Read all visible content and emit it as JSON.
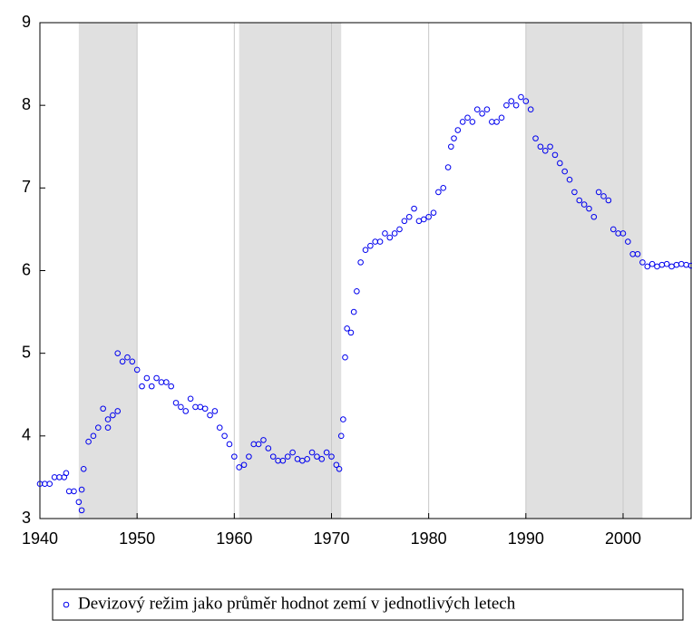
{
  "chart_data": {
    "type": "scatter",
    "xlim": [
      1940,
      2007
    ],
    "ylim": [
      3,
      9
    ],
    "xticks": [
      1940,
      1950,
      1960,
      1970,
      1980,
      1990,
      2000
    ],
    "yticks": [
      3,
      4,
      5,
      6,
      7,
      8,
      9
    ],
    "grid": true,
    "shaded_regions": [
      [
        1944,
        1950
      ],
      [
        1960.5,
        1971
      ],
      [
        1990,
        2002
      ]
    ],
    "legend": "bottom",
    "series": [
      {
        "name": "Devizový režim jako průměr hodnot zemí v jednotlivých letech",
        "color": "#0000ee",
        "x": [
          1940,
          1940.5,
          1941,
          1941.5,
          1942,
          1942.5,
          1942.7,
          1943,
          1943.5,
          1944,
          1944.3,
          1944.3,
          1944.5,
          1945,
          1945.5,
          1946,
          1946.5,
          1947,
          1947,
          1947.5,
          1948,
          1948,
          1948.5,
          1949,
          1949.5,
          1950,
          1950.5,
          1951,
          1951.5,
          1952,
          1952.5,
          1953,
          1953.5,
          1954,
          1954.5,
          1955,
          1955.5,
          1956,
          1956.5,
          1957,
          1957.5,
          1958,
          1958.5,
          1959,
          1959.5,
          1960,
          1960.5,
          1961,
          1961.5,
          1962,
          1962.5,
          1963,
          1963.5,
          1964,
          1964.5,
          1965,
          1965.5,
          1966,
          1966.5,
          1967,
          1967.5,
          1968,
          1968.5,
          1969,
          1969.5,
          1970,
          1970.5,
          1970.8,
          1971,
          1971.2,
          1971.4,
          1971.6,
          1972,
          1972.3,
          1972.6,
          1973,
          1973.5,
          1974,
          1974.5,
          1975,
          1975.5,
          1976,
          1976.5,
          1977,
          1977.5,
          1978,
          1978.5,
          1979,
          1979.5,
          1980,
          1980.5,
          1981,
          1981.5,
          1982,
          1982.3,
          1982.6,
          1983,
          1983.5,
          1984,
          1984.5,
          1985,
          1985.5,
          1986,
          1986.5,
          1987,
          1987.5,
          1988,
          1988.5,
          1989,
          1989.5,
          1990,
          1990.5,
          1991,
          1991.5,
          1992,
          1992.5,
          1993,
          1993.5,
          1994,
          1994.5,
          1995,
          1995.5,
          1996,
          1996.5,
          1997,
          1997.5,
          1998,
          1998.5,
          1999,
          1999.5,
          2000,
          2000.5,
          2001,
          2001.5,
          2002,
          2002.5,
          2003,
          2003.5,
          2004,
          2004.5,
          2005,
          2005.5,
          2006,
          2006.5,
          2007
        ],
        "values": [
          3.42,
          3.42,
          3.42,
          3.5,
          3.5,
          3.5,
          3.55,
          3.33,
          3.33,
          3.2,
          3.1,
          3.35,
          3.6,
          3.93,
          4.0,
          4.1,
          4.33,
          4.1,
          4.2,
          4.25,
          4.3,
          5.0,
          4.9,
          4.95,
          4.9,
          4.8,
          4.6,
          4.7,
          4.6,
          4.7,
          4.65,
          4.65,
          4.6,
          4.4,
          4.35,
          4.3,
          4.45,
          4.35,
          4.35,
          4.33,
          4.25,
          4.3,
          4.1,
          4.0,
          3.9,
          3.75,
          3.62,
          3.65,
          3.75,
          3.9,
          3.9,
          3.95,
          3.85,
          3.75,
          3.7,
          3.7,
          3.75,
          3.8,
          3.72,
          3.7,
          3.72,
          3.8,
          3.75,
          3.72,
          3.8,
          3.75,
          3.65,
          3.6,
          4.0,
          4.2,
          4.95,
          5.3,
          5.25,
          5.5,
          5.75,
          6.1,
          6.25,
          6.3,
          6.35,
          6.35,
          6.45,
          6.4,
          6.45,
          6.5,
          6.6,
          6.65,
          6.75,
          6.6,
          6.62,
          6.65,
          6.7,
          6.95,
          7.0,
          7.25,
          7.5,
          7.6,
          7.7,
          7.8,
          7.85,
          7.8,
          7.95,
          7.9,
          7.95,
          7.8,
          7.8,
          7.85,
          8.0,
          8.05,
          8.0,
          8.1,
          8.05,
          7.95,
          7.6,
          7.5,
          7.45,
          7.5,
          7.4,
          7.3,
          7.2,
          7.1,
          6.95,
          6.85,
          6.8,
          6.75,
          6.65,
          6.95,
          6.9,
          6.85,
          6.5,
          6.45,
          6.45,
          6.35,
          6.2,
          6.2,
          6.1,
          6.05,
          6.08,
          6.05,
          6.07,
          6.08,
          6.05,
          6.07,
          6.08,
          6.07,
          6.06
        ]
      }
    ]
  }
}
